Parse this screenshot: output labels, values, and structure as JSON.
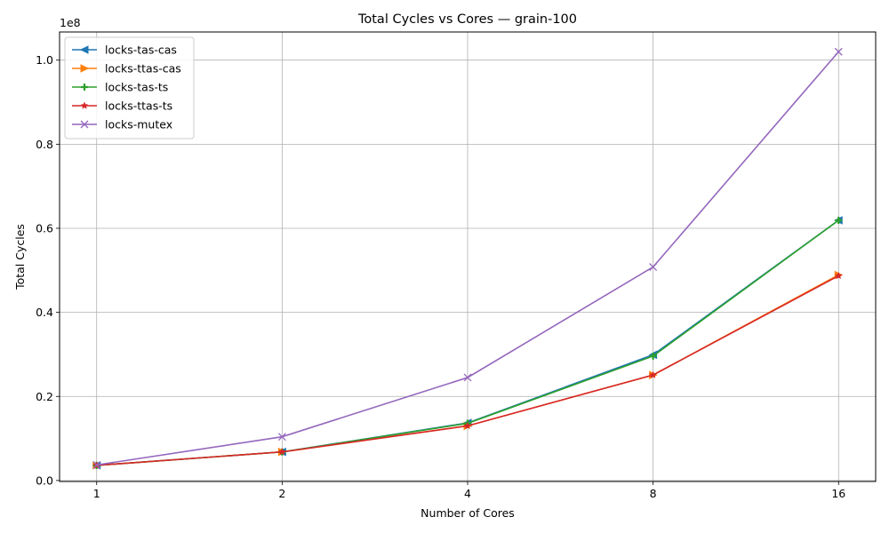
{
  "chart_data": {
    "type": "line",
    "title": "Total Cycles vs Cores — grain-100",
    "xlabel": "Number of Cores",
    "ylabel": "Total Cycles",
    "x_scale": "log2",
    "x": [
      1,
      2,
      4,
      8,
      16
    ],
    "x_tick_labels": [
      "1",
      "2",
      "4",
      "8",
      "16"
    ],
    "ylim": [
      -0.0023,
      1.067
    ],
    "y_offset_label": "1e8",
    "y_ticks": [
      0.0,
      0.2,
      0.4,
      0.6,
      0.8,
      1.0
    ],
    "y_tick_labels": [
      "0.0",
      "0.2",
      "0.4",
      "0.6",
      "0.8",
      "1.0"
    ],
    "grid": true,
    "legend_position": "upper-left",
    "series": [
      {
        "name": "locks-tas-cas",
        "color": "#1f77b4",
        "marker": "triangle-left",
        "values": [
          0.036,
          0.068,
          0.137,
          0.299,
          0.619
        ]
      },
      {
        "name": "locks-ttas-cas",
        "color": "#ff7f0e",
        "marker": "triangle-right",
        "values": [
          0.036,
          0.068,
          0.13,
          0.251,
          0.489
        ]
      },
      {
        "name": "locks-tas-ts",
        "color": "#2ca02c",
        "marker": "plus",
        "values": [
          0.036,
          0.068,
          0.136,
          0.296,
          0.619
        ]
      },
      {
        "name": "locks-ttas-ts",
        "color": "#d62728",
        "marker": "star",
        "values": [
          0.036,
          0.068,
          0.13,
          0.251,
          0.487
        ]
      },
      {
        "name": "locks-mutex",
        "color": "#9467bd",
        "marker": "x",
        "values": [
          0.037,
          0.104,
          0.245,
          0.508,
          1.02
        ]
      }
    ]
  }
}
